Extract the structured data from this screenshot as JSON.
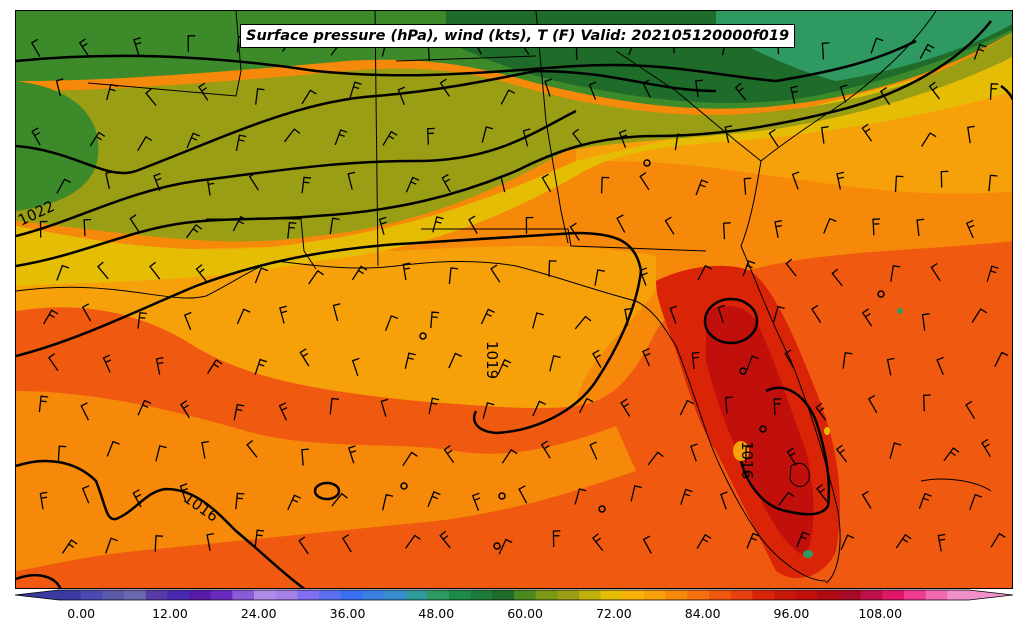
{
  "title": "Surface pressure (hPa), wind (kts), T (F) Valid: 202105120000f019",
  "map": {
    "contour_labels": [
      "1022",
      "1019",
      "1016",
      "1016"
    ],
    "colors": {
      "green_dark": "#1e6b2a",
      "green": "#3c8a2a",
      "teal": "#2e9a62",
      "olive": "#9a9e14",
      "yellow": "#e6bd05",
      "orange_light": "#f7a10a",
      "orange": "#f6880a",
      "red_orange": "#f05a10",
      "red": "#d92408",
      "dark_red": "#c10f0b"
    }
  },
  "colorbar": {
    "ticks": [
      "0.00",
      "12.00",
      "24.00",
      "36.00",
      "48.00",
      "60.00",
      "72.00",
      "84.00",
      "96.00",
      "108.00"
    ],
    "tick_values": [
      0,
      12,
      24,
      36,
      48,
      60,
      72,
      84,
      96,
      108
    ],
    "min": -6,
    "max": 123,
    "step": 3,
    "extend": "both"
  }
}
